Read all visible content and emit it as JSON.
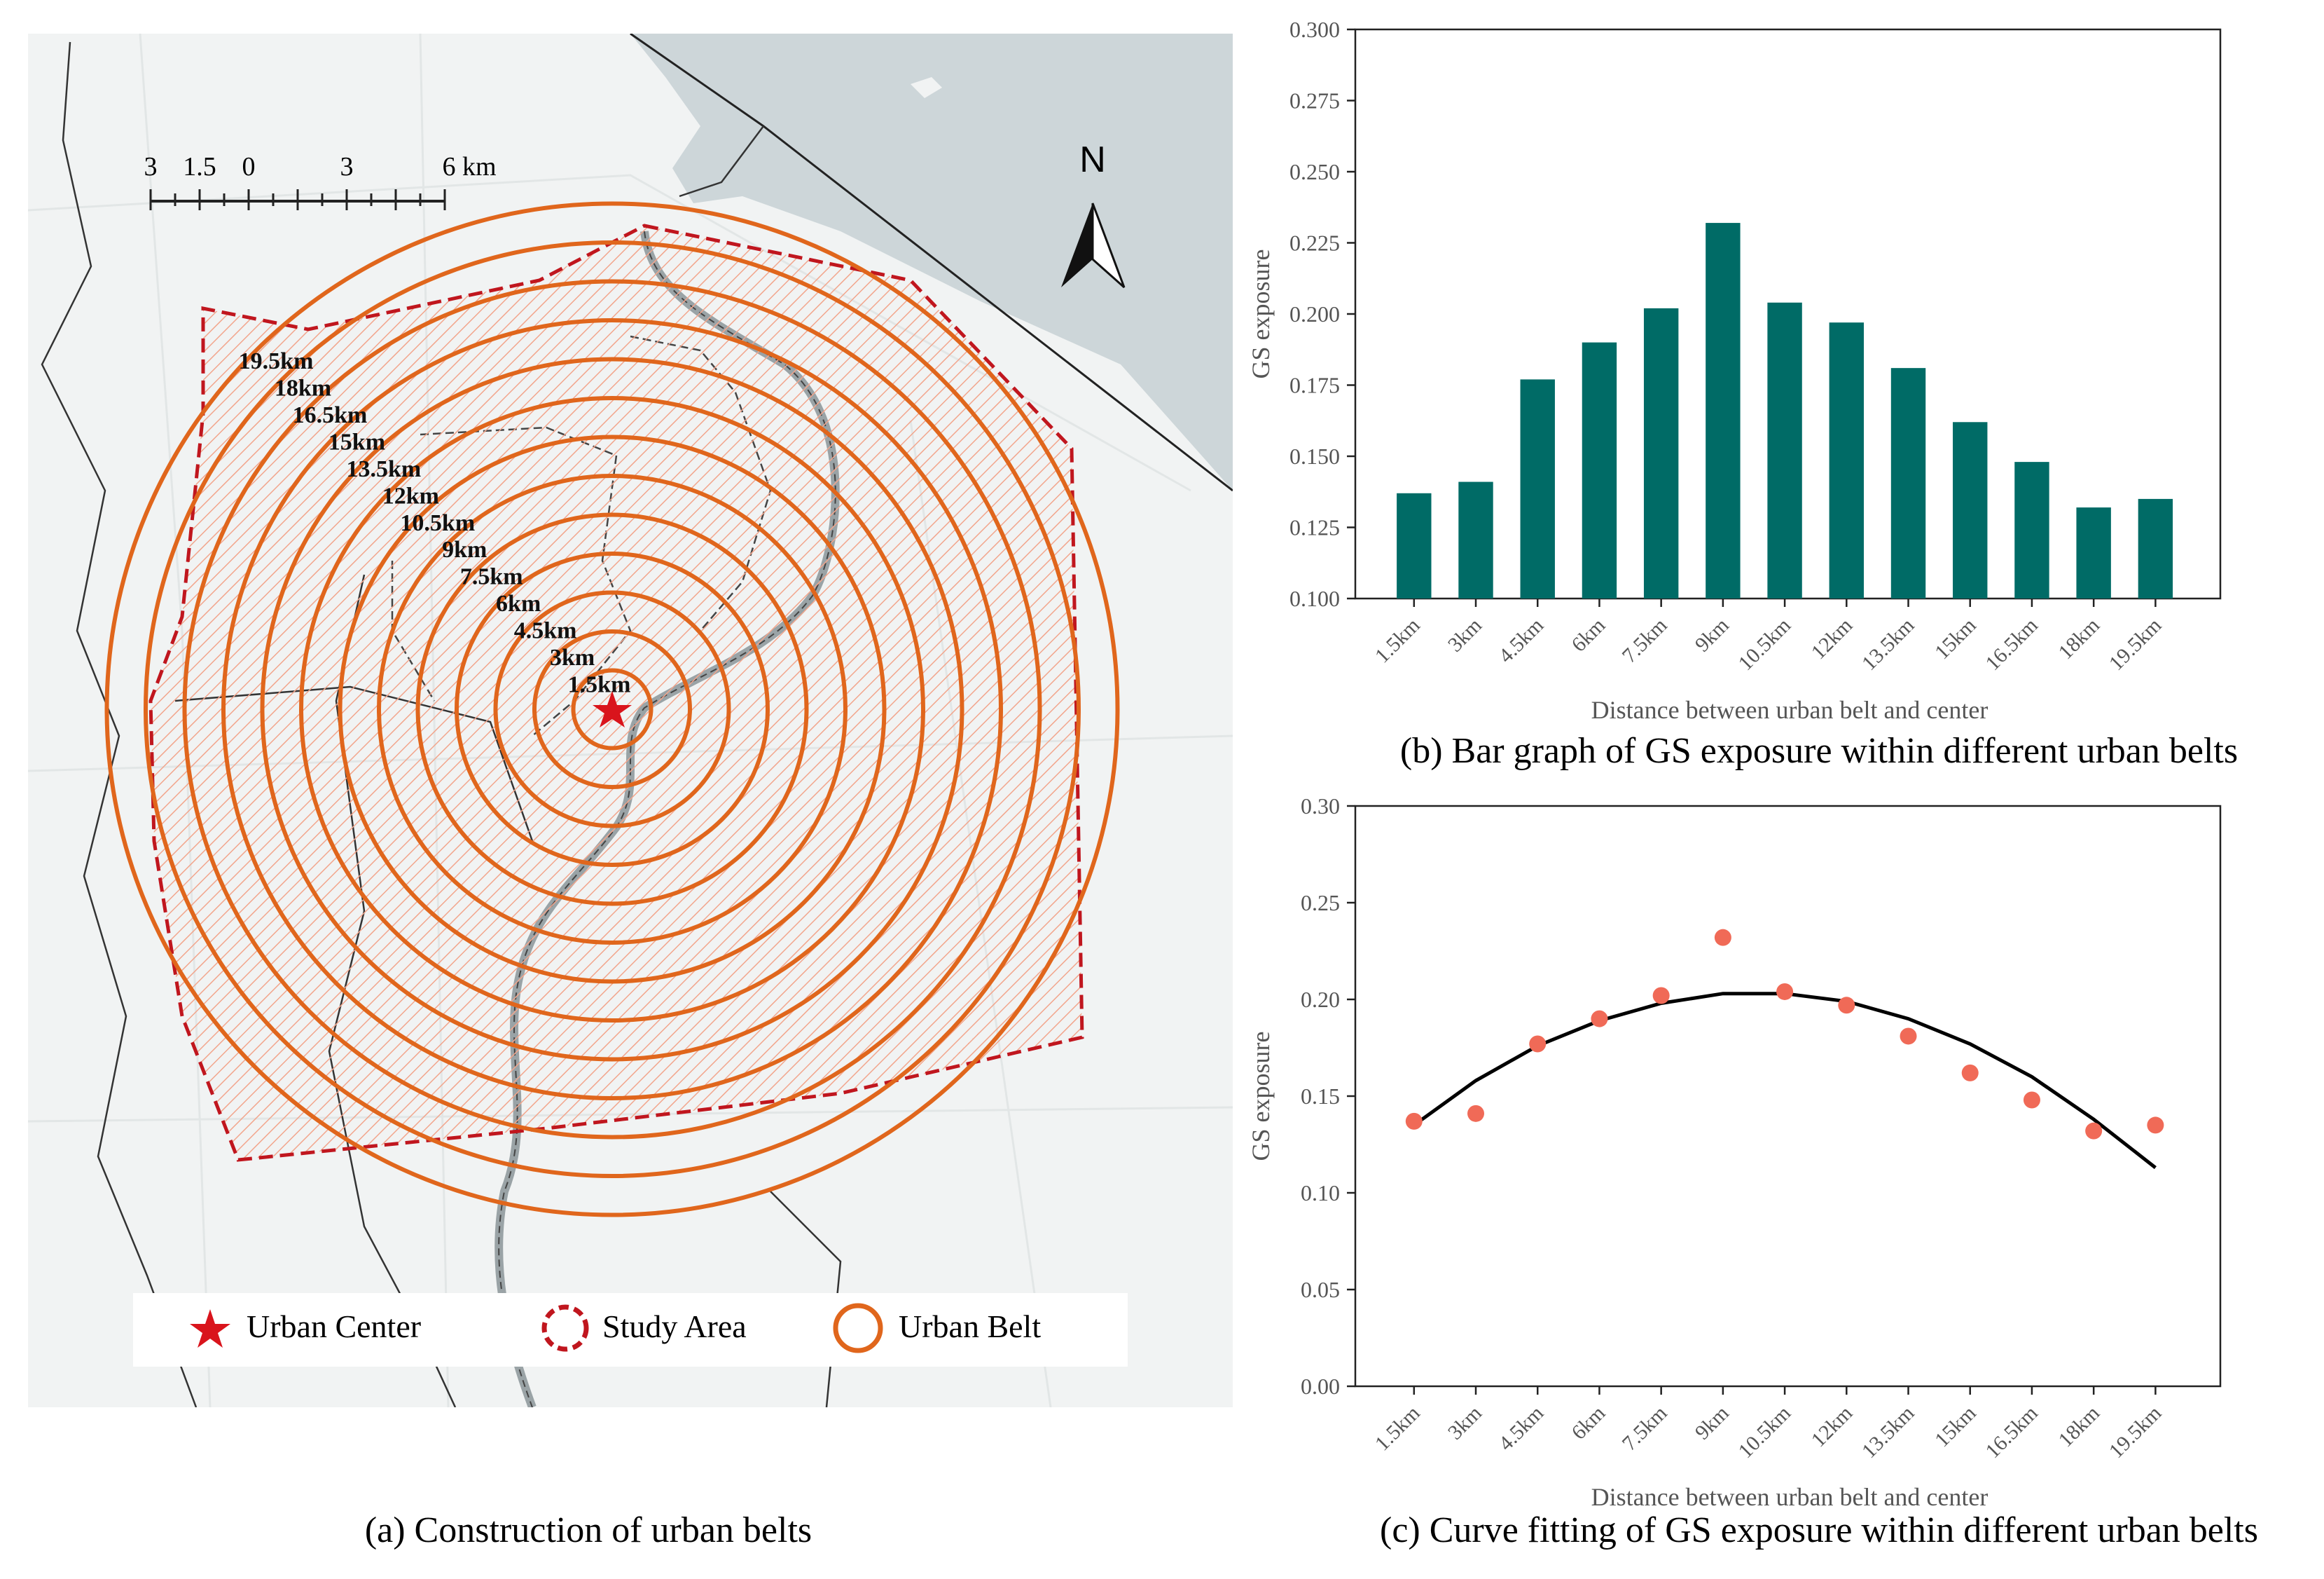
{
  "captions": {
    "a": "(a) Construction of urban belts",
    "b": "(b) Bar graph of GS exposure within different urban belts",
    "c": "(c)  Curve fitting of GS exposure within different urban belts"
  },
  "map": {
    "north_label": "N",
    "scale_bar": {
      "labels": [
        "3",
        "1.5",
        "0",
        "3",
        "6 km"
      ]
    },
    "belt_labels": [
      "1.5km",
      "3km",
      "4.5km",
      "6km",
      "7.5km",
      "9km",
      "10.5km",
      "12km",
      "13.5km",
      "15km",
      "16.5km",
      "18km",
      "19.5km"
    ],
    "legend": [
      {
        "label": "Urban Center",
        "icon": "star-icon"
      },
      {
        "label": "Study Area",
        "icon": "dashed-circle-icon"
      },
      {
        "label": "Urban Belt",
        "icon": "circle-icon"
      }
    ],
    "colors": {
      "belt": "#e0661c",
      "study_area": "#c0161e",
      "center": "#d9141c",
      "water": "#cdd6d9",
      "land": "#f1f3f3",
      "hatch": "#f2a58c"
    }
  },
  "chart_data": [
    {
      "type": "bar",
      "categories": [
        "1.5km",
        "3km",
        "4.5km",
        "6km",
        "7.5km",
        "9km",
        "10.5km",
        "12km",
        "13.5km",
        "15km",
        "16.5km",
        "18km",
        "19.5km"
      ],
      "values": [
        0.137,
        0.141,
        0.177,
        0.19,
        0.202,
        0.232,
        0.204,
        0.197,
        0.181,
        0.162,
        0.148,
        0.132,
        0.135
      ],
      "xlabel": "Distance between urban belt and center",
      "ylabel": "GS exposure",
      "ylim": [
        0.1,
        0.3
      ],
      "yticks": [
        "0.100",
        "0.125",
        "0.150",
        "0.175",
        "0.200",
        "0.225",
        "0.250",
        "0.275",
        "0.300"
      ],
      "color": "#006b66",
      "grid": false
    },
    {
      "type": "scatter",
      "categories": [
        "1.5km",
        "3km",
        "4.5km",
        "6km",
        "7.5km",
        "9km",
        "10.5km",
        "12km",
        "13.5km",
        "15km",
        "16.5km",
        "18km",
        "19.5km"
      ],
      "values": [
        0.137,
        0.141,
        0.177,
        0.19,
        0.202,
        0.232,
        0.204,
        0.197,
        0.181,
        0.162,
        0.148,
        0.132,
        0.135
      ],
      "fit_values": [
        0.135,
        0.158,
        0.176,
        0.189,
        0.198,
        0.203,
        0.203,
        0.199,
        0.19,
        0.177,
        0.16,
        0.138,
        0.113
      ],
      "xlabel": "Distance between urban belt and center",
      "ylabel": "GS exposure",
      "ylim": [
        0.0,
        0.3
      ],
      "yticks": [
        "0.00",
        "0.05",
        "0.10",
        "0.15",
        "0.20",
        "0.25",
        "0.30"
      ],
      "point_color": "#f06a57",
      "line_color": "#000000",
      "grid": false
    }
  ]
}
